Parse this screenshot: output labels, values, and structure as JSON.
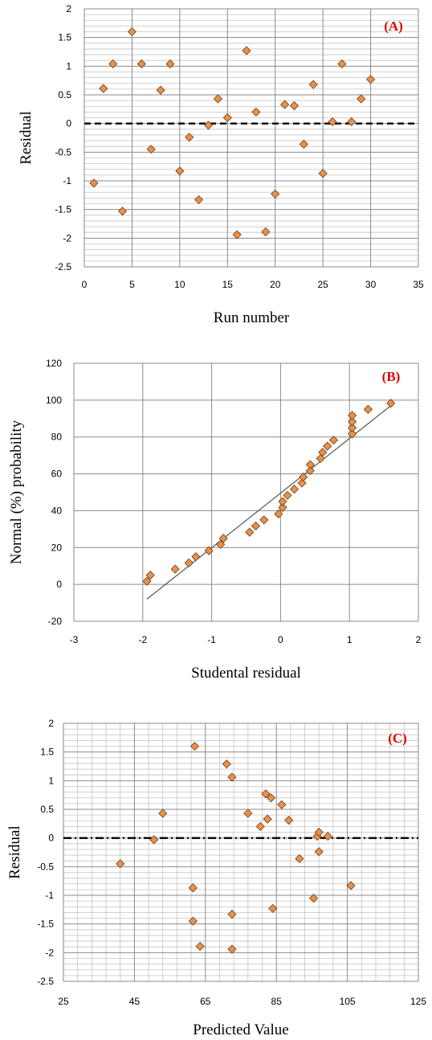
{
  "chart_data": [
    {
      "type": "scatter",
      "label": "(A)",
      "xlabel": "Run number",
      "ylabel": "Residual",
      "xlim": [
        0,
        35
      ],
      "ylim": [
        -2.5,
        2
      ],
      "xticks": [
        0,
        5,
        10,
        15,
        20,
        25,
        30,
        35
      ],
      "yticks": [
        -2.5,
        -2,
        -1.5,
        -1,
        -0.5,
        0,
        0.5,
        1,
        1.5,
        2
      ],
      "reference_line": {
        "y": 0,
        "style": "dashed"
      },
      "grid": "major-and-minor",
      "marker": {
        "shape": "diamond",
        "color": "#e8914a"
      },
      "x": [
        1,
        2,
        3,
        4,
        5,
        6,
        7,
        8,
        9,
        10,
        11,
        12,
        13,
        14,
        15,
        16,
        17,
        18,
        19,
        20,
        21,
        22,
        23,
        24,
        25,
        26,
        27,
        28,
        29,
        30
      ],
      "y": [
        -1.04,
        0.61,
        1.04,
        -1.53,
        1.6,
        1.04,
        -0.45,
        0.58,
        1.04,
        -0.83,
        -0.24,
        -1.33,
        -0.03,
        0.43,
        0.1,
        -1.94,
        1.27,
        0.2,
        -1.89,
        -1.23,
        0.33,
        0.31,
        -0.36,
        0.68,
        -0.87,
        0.03,
        1.04,
        0.03,
        0.43,
        0.77
      ]
    },
    {
      "type": "scatter",
      "label": "(B)",
      "xlabel": "Studental residual",
      "ylabel": "Normal (%) probability",
      "xlim": [
        -3,
        2
      ],
      "ylim": [
        -20,
        120
      ],
      "xticks": [
        -3,
        -2,
        -1,
        0,
        1,
        2
      ],
      "yticks": [
        -20,
        0,
        20,
        40,
        60,
        80,
        100,
        120
      ],
      "grid": "major",
      "marker": {
        "shape": "diamond",
        "color": "#e8914a"
      },
      "fit_line": {
        "x": [
          -1.94,
          1.6
        ],
        "y": [
          -8,
          97
        ]
      },
      "x": [
        -1.94,
        -1.89,
        -1.53,
        -1.33,
        -1.23,
        -1.04,
        -0.87,
        -0.83,
        -0.45,
        -0.36,
        -0.24,
        -0.03,
        0.03,
        0.03,
        0.1,
        0.2,
        0.31,
        0.33,
        0.43,
        0.43,
        0.58,
        0.61,
        0.68,
        0.77,
        1.04,
        1.04,
        1.04,
        1.04,
        1.27,
        1.6
      ],
      "y": [
        1.7,
        5,
        8.3,
        11.7,
        15,
        18.3,
        21.7,
        25,
        28.3,
        31.7,
        35,
        38.3,
        41.7,
        45,
        48.3,
        51.7,
        55,
        58.3,
        61.7,
        65,
        68.3,
        71.7,
        75,
        78.3,
        81.7,
        85,
        88.3,
        91.7,
        95,
        98.3
      ]
    },
    {
      "type": "scatter",
      "label": "(C)",
      "xlabel": "Predicted Value",
      "ylabel": "Residual",
      "xlim": [
        25,
        125
      ],
      "ylim": [
        -2.5,
        2
      ],
      "xticks": [
        25,
        45,
        65,
        85,
        105,
        125
      ],
      "yticks": [
        -2.5,
        -2,
        -1.5,
        -1,
        -0.5,
        0,
        0.5,
        1,
        1.5,
        2
      ],
      "reference_line": {
        "y": 0,
        "style": "dash-dot"
      },
      "grid": "major-and-minor",
      "marker": {
        "shape": "diamond",
        "color": "#e8914a"
      },
      "x": [
        41,
        50.5,
        53,
        62,
        61.5,
        61.5,
        63.5,
        71,
        72.5,
        72.5,
        72.5,
        77,
        80.5,
        82,
        82.5,
        83.5,
        84,
        86.5,
        88.5,
        91.5,
        95.5,
        96.5,
        97,
        97,
        99.5,
        106
      ],
      "y": [
        -0.45,
        -0.03,
        0.43,
        1.6,
        -0.87,
        -1.45,
        -1.89,
        1.29,
        1.06,
        -1.33,
        -1.94,
        0.43,
        0.2,
        0.77,
        0.33,
        0.7,
        -1.23,
        0.58,
        0.31,
        -0.36,
        -1.05,
        0.03,
        0.1,
        -0.24,
        0.03,
        -0.83
      ]
    }
  ]
}
